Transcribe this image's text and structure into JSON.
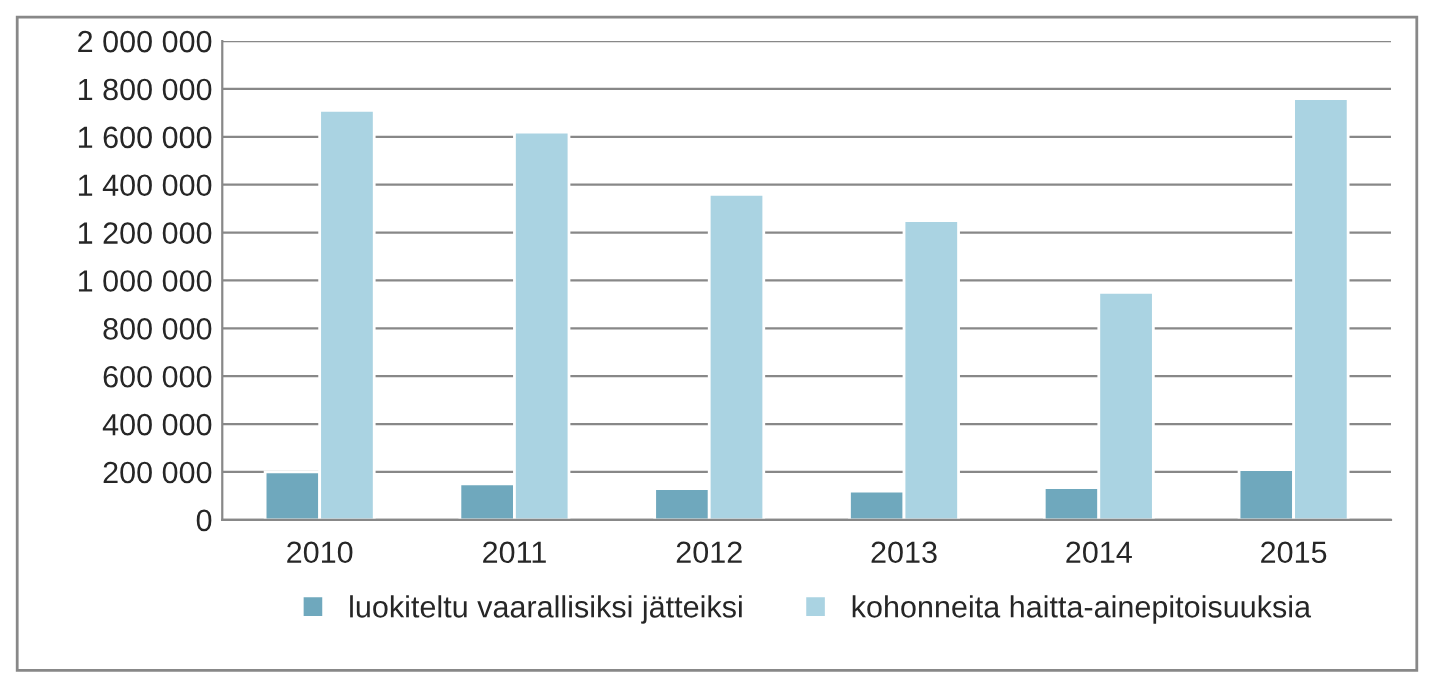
{
  "chart_data": {
    "type": "bar",
    "categories": [
      "2010",
      "2011",
      "2012",
      "2013",
      "2014",
      "2015"
    ],
    "series": [
      {
        "name": "luokiteltu vaarallisiksi jätteiksi",
        "color": "#6fa8bd",
        "values": [
          200000,
          150000,
          130000,
          120000,
          135000,
          210000
        ]
      },
      {
        "name": "kohonneita haitta-ainepitoisuuksia",
        "color": "#aad3e2",
        "values": [
          1710000,
          1620000,
          1360000,
          1250000,
          950000,
          1760000
        ]
      }
    ],
    "ylim": [
      0,
      2000000
    ],
    "yticks": [
      0,
      {
        "value": 200000,
        "label": "200 000"
      },
      {
        "value": 400000,
        "label": "400 000"
      },
      {
        "value": 600000,
        "label": "600 000"
      },
      {
        "value": 800000,
        "label": "800 000"
      },
      {
        "value": 1000000,
        "label": "1 000 000"
      },
      {
        "value": 1200000,
        "label": "1 200 000"
      },
      {
        "value": 1400000,
        "label": "1 400 000"
      },
      {
        "value": 1600000,
        "label": "1 600 000"
      },
      {
        "value": 1800000,
        "label": "1 800 000"
      },
      {
        "value": 2000000,
        "label": "2 000 000"
      }
    ],
    "grid": "y",
    "legend": "bottom"
  }
}
